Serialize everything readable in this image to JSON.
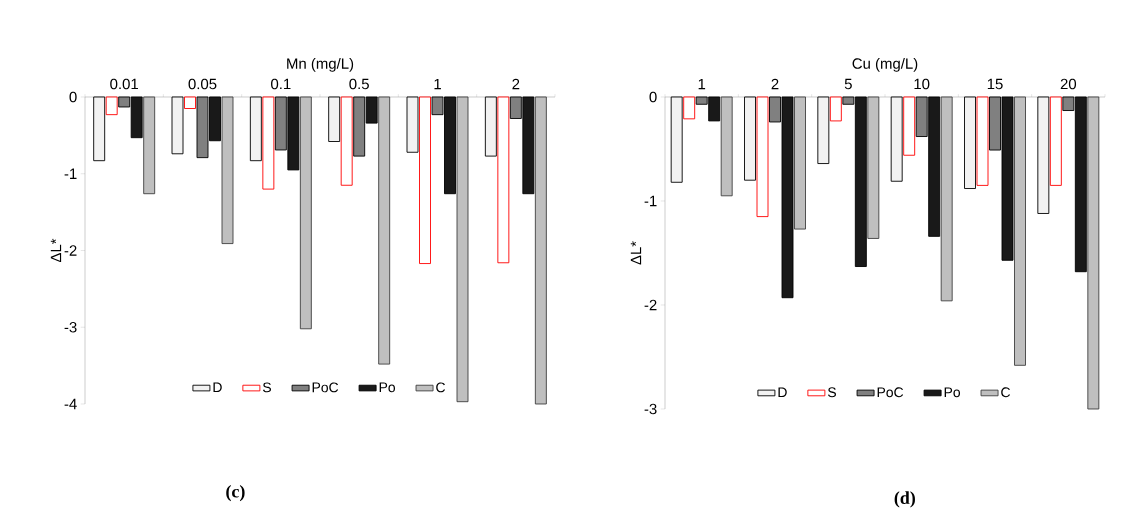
{
  "chart_data": [
    {
      "type": "bar",
      "xlabel": "Mn (mg/L)",
      "ylabel": "ΔL*",
      "categories": [
        "0.01",
        "0.05",
        "0.1",
        "0.5",
        "1",
        "2"
      ],
      "series": [
        {
          "name": "D",
          "color": "#000000",
          "values": [
            -0.83,
            -0.74,
            -0.83,
            -0.58,
            -0.72,
            -0.77
          ]
        },
        {
          "name": "S",
          "color": "#ff0000",
          "values": [
            -0.23,
            -0.15,
            -1.2,
            -1.15,
            -2.17,
            -2.16
          ]
        },
        {
          "name": "PoC",
          "color": "#000000",
          "values": [
            -0.13,
            -0.79,
            -0.69,
            -0.77,
            -0.23,
            -0.28
          ]
        },
        {
          "name": "Po",
          "color": "#000000",
          "values": [
            -0.53,
            -0.57,
            -0.95,
            -0.34,
            -1.26,
            -1.26
          ]
        },
        {
          "name": "C",
          "color": "#404040",
          "values": [
            -1.26,
            -1.91,
            -3.02,
            -3.48,
            -3.97,
            -4
          ]
        }
      ],
      "ylim": [
        -4,
        0
      ],
      "yticks": [
        -4,
        -3,
        -2,
        -1,
        0
      ],
      "legend": "bottom",
      "annotations": [
        "(c)"
      ]
    },
    {
      "type": "bar",
      "xlabel": "Cu (mg/L)",
      "ylabel": "ΔL*",
      "categories": [
        "1",
        "2",
        "5",
        "10",
        "15",
        "20"
      ],
      "series": [
        {
          "name": "D",
          "color": "#000000",
          "values": [
            -0.82,
            -0.8,
            -0.64,
            -0.81,
            -0.88,
            -1.12
          ]
        },
        {
          "name": "S",
          "color": "#ff0000",
          "values": [
            -0.21,
            -1.15,
            -0.23,
            -0.56,
            -0.85,
            -0.85
          ]
        },
        {
          "name": "PoC",
          "color": "#000000",
          "values": [
            -0.07,
            -0.24,
            -0.07,
            -0.38,
            -0.51,
            -0.13
          ]
        },
        {
          "name": "Po",
          "color": "#000000",
          "values": [
            -0.23,
            -1.93,
            -1.63,
            -1.34,
            -1.57,
            -1.68
          ]
        },
        {
          "name": "C",
          "color": "#404040",
          "values": [
            -0.95,
            -1.27,
            -1.36,
            -1.96,
            -2.58,
            -3
          ]
        }
      ],
      "ylim": [
        -3,
        0
      ],
      "yticks": [
        -3,
        -2,
        -1,
        0
      ],
      "legend": "bottom",
      "annotations": [
        "(d)"
      ]
    }
  ]
}
